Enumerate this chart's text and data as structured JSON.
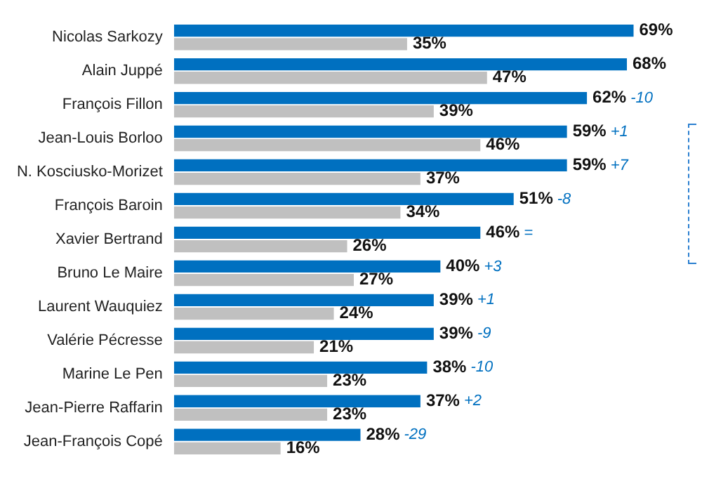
{
  "chart_data": {
    "type": "bar",
    "orientation": "horizontal",
    "categories": [
      "Nicolas Sarkozy",
      "Alain Juppé",
      "François Fillon",
      "Jean-Louis Borloo",
      "N. Kosciusko-Morizet",
      "François Baroin",
      "Xavier Bertrand",
      "Bruno Le Maire",
      "Laurent Wauquiez",
      "Valérie Pécresse",
      "Marine Le Pen",
      "Jean-Pierre Raffarin",
      "Jean-François Copé"
    ],
    "series": [
      {
        "color": "#0070c0",
        "values": [
          69,
          68,
          62,
          59,
          59,
          51,
          46,
          40,
          39,
          39,
          38,
          37,
          28
        ],
        "value_labels": [
          "69%",
          "68%",
          "62%",
          "59%",
          "59%",
          "51%",
          "46%",
          "40%",
          "39%",
          "39%",
          "38%",
          "37%",
          "28%"
        ]
      },
      {
        "color": "#c0c0c0",
        "values": [
          35,
          47,
          39,
          46,
          37,
          34,
          26,
          27,
          24,
          21,
          23,
          23,
          16
        ],
        "value_labels": [
          "35%",
          "47%",
          "39%",
          "46%",
          "37%",
          "34%",
          "26%",
          "27%",
          "24%",
          "21%",
          "23%",
          "23%",
          "16%"
        ]
      }
    ],
    "annotations": [
      {
        "text": "-10",
        "x": 62,
        "y": "François Fillon"
      },
      {
        "text": "+1",
        "x": 59,
        "y": "Jean-Louis Borloo"
      },
      {
        "text": "+7",
        "x": 59,
        "y": "N. Kosciusko-Morizet"
      },
      {
        "text": "-8",
        "x": 51,
        "y": "François Baroin"
      },
      {
        "text": "=",
        "x": 46,
        "y": "Xavier Bertrand"
      },
      {
        "text": "+3",
        "x": 40,
        "y": "Bruno Le Maire"
      },
      {
        "text": "+1",
        "x": 39,
        "y": "Laurent Wauquiez"
      },
      {
        "text": "-9",
        "x": 39,
        "y": "Valérie Pécresse"
      },
      {
        "text": "-10",
        "x": 38,
        "y": "Marine Le Pen"
      },
      {
        "text": "+2",
        "x": 37,
        "y": "Jean-Pierre Raffarin"
      },
      {
        "text": "-29",
        "x": 28,
        "y": "Jean-François Copé"
      }
    ],
    "tick_labels": "y",
    "grid": false,
    "legend": false
  }
}
